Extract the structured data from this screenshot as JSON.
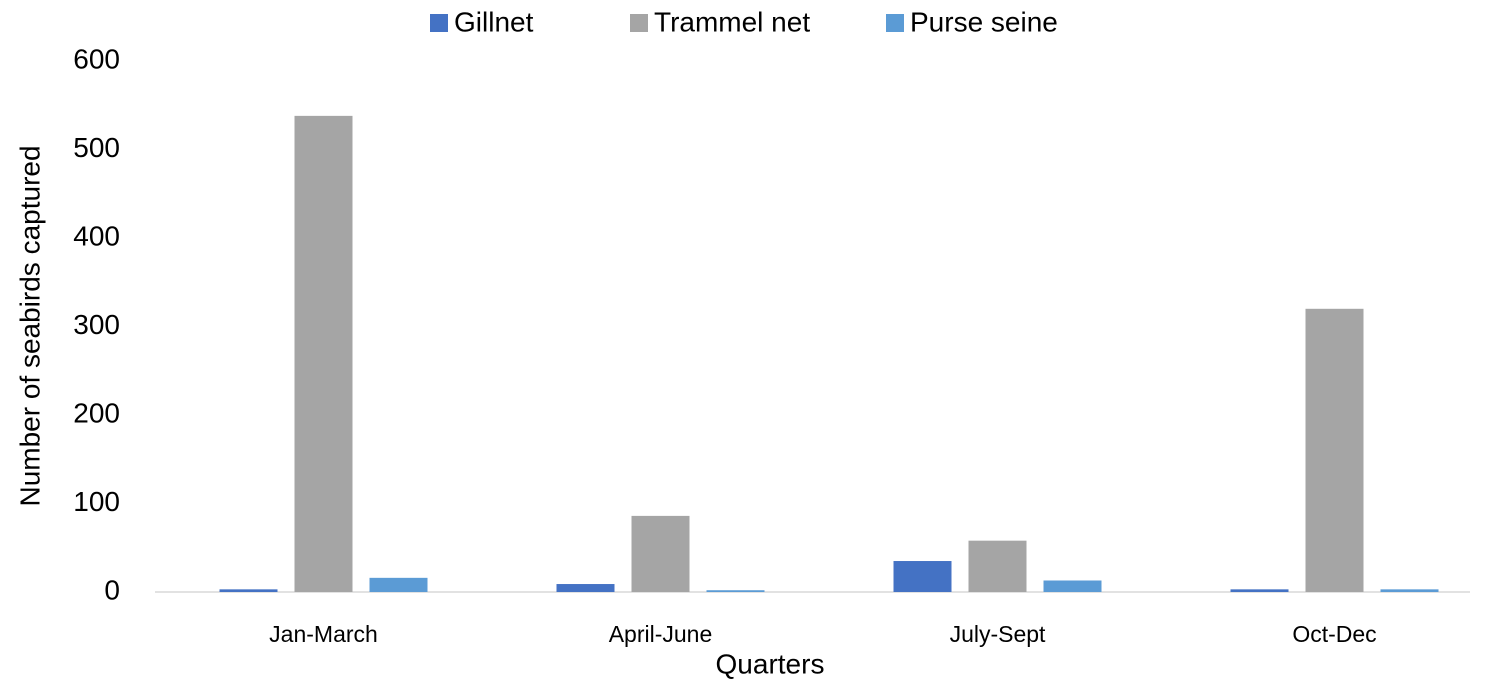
{
  "chart_data": {
    "type": "bar",
    "xlabel": "Quarters",
    "ylabel": "Number of seabirds captured",
    "categories": [
      "Jan-March",
      "April-June",
      "July-Sept",
      "Oct-Dec"
    ],
    "series": [
      {
        "name": "Gillnet",
        "color": "#4472c4",
        "values": [
          3,
          9,
          35,
          3
        ]
      },
      {
        "name": "Trammel net",
        "color": "#a5a5a5",
        "values": [
          538,
          86,
          58,
          320
        ]
      },
      {
        "name": "Purse seine",
        "color": "#5b9bd5",
        "values": [
          16,
          2,
          13,
          3
        ]
      }
    ],
    "ylim": [
      0,
      600
    ],
    "yticks": [
      0,
      100,
      200,
      300,
      400,
      500,
      600
    ],
    "grid": false,
    "legend": "top"
  }
}
